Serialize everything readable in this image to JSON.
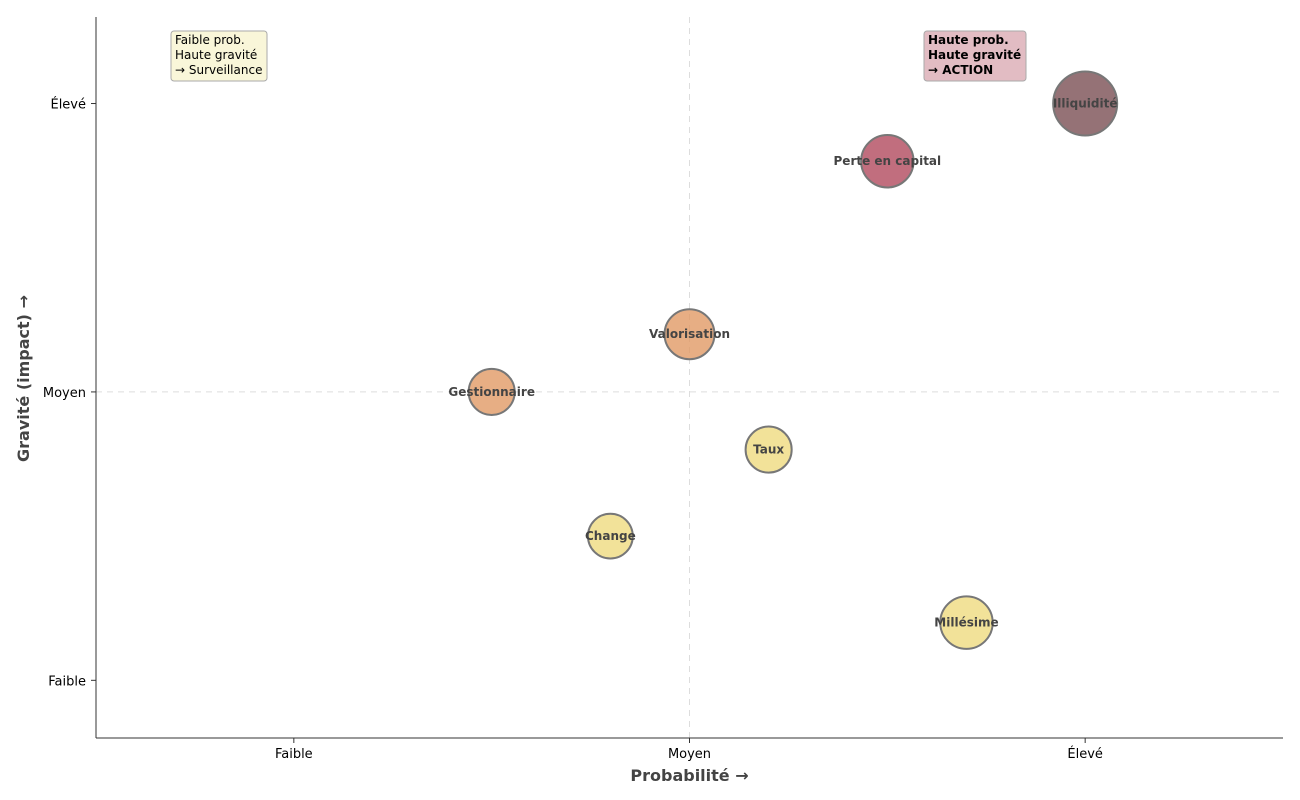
{
  "chart_data": {
    "type": "scatter",
    "title": "",
    "xlabel": "Probabilité →",
    "ylabel": "Gravité (impact) →",
    "xlim": [
      0.5,
      3.5
    ],
    "ylim": [
      0.8,
      3.3
    ],
    "x_ticks": [
      {
        "value": 1,
        "label": "Faible"
      },
      {
        "value": 2,
        "label": "Moyen"
      },
      {
        "value": 3,
        "label": "Élevé"
      }
    ],
    "y_ticks": [
      {
        "value": 1,
        "label": "Faible"
      },
      {
        "value": 2,
        "label": "Moyen"
      },
      {
        "value": 3,
        "label": "Élevé"
      }
    ],
    "grid": "dashed at mid-level (Moyen) on both axes",
    "points": [
      {
        "name": "Illiquidité",
        "x": 3.0,
        "y": 3.0,
        "size": 1.0,
        "color": "#7a4f54"
      },
      {
        "name": "Perte en capital",
        "x": 2.5,
        "y": 2.8,
        "size": 0.82,
        "color": "#b14a5e"
      },
      {
        "name": "Valorisation",
        "x": 2.0,
        "y": 2.2,
        "size": 0.78,
        "color": "#e19a65"
      },
      {
        "name": "Gestionnaire",
        "x": 1.5,
        "y": 2.0,
        "size": 0.72,
        "color": "#e19a65"
      },
      {
        "name": "Taux",
        "x": 2.2,
        "y": 1.8,
        "size": 0.72,
        "color": "#efdb7f"
      },
      {
        "name": "Change",
        "x": 1.8,
        "y": 1.5,
        "size": 0.7,
        "color": "#efdb7f"
      },
      {
        "name": "Millésime",
        "x": 2.7,
        "y": 1.2,
        "size": 0.82,
        "color": "#efdb7f"
      }
    ],
    "annotations": [
      {
        "id": "low-prob-high-sev",
        "lines": [
          "Faible prob.",
          "Haute gravité",
          "→ Surveillance"
        ],
        "bold": false,
        "background": "#f9f6d9",
        "position": "top-left"
      },
      {
        "id": "high-prob-high-sev",
        "lines": [
          "Haute prob.",
          "Haute gravité",
          "→ ACTION"
        ],
        "bold": true,
        "background": "#e2bcc3",
        "position": "top-right"
      }
    ]
  }
}
